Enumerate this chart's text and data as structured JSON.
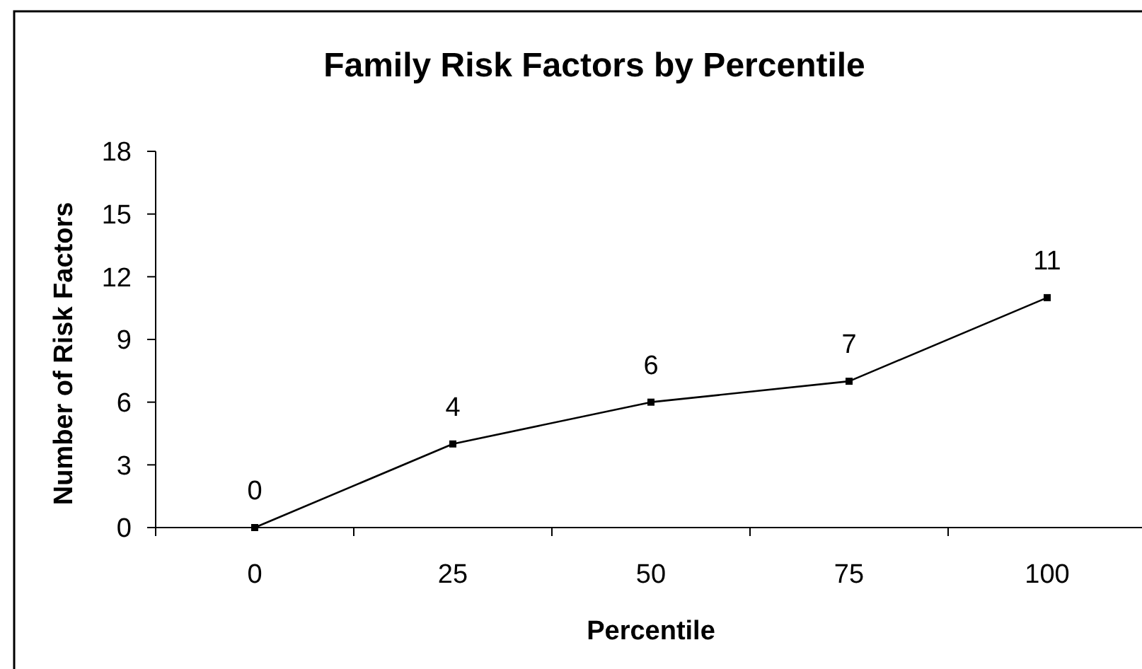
{
  "chart_data": {
    "type": "line",
    "title": "Family Risk Factors by Percentile",
    "xlabel": "Percentile",
    "ylabel": "Number of Risk Factors",
    "categories": [
      "0",
      "25",
      "50",
      "75",
      "100"
    ],
    "series": [
      {
        "color": "#000000",
        "values": [
          0,
          4,
          6,
          7,
          11
        ]
      }
    ],
    "ylim": [
      0,
      18
    ],
    "yticks": [
      0,
      3,
      6,
      9,
      12,
      15,
      18
    ],
    "grid": false,
    "marker": "square",
    "line_style": "solid",
    "data_labels": true
  }
}
